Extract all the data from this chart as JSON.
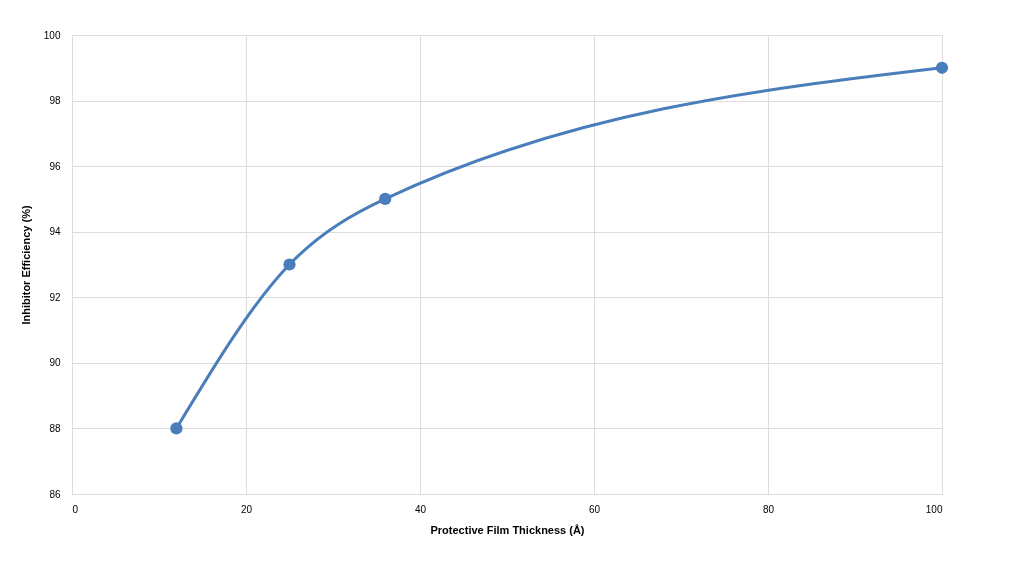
{
  "chart_data": {
    "type": "line",
    "xlabel": "Protective Film Thickness (Å)",
    "ylabel": "Inhibitor Efficiency (%)",
    "series": [
      {
        "color": "#4a7ebb",
        "x": [
          12,
          25,
          36,
          100
        ],
        "values": [
          88,
          93,
          95,
          99
        ]
      }
    ],
    "xlim": [
      0,
      100
    ],
    "xticks": [
      0,
      20,
      40,
      60,
      80,
      100
    ],
    "ylim": [
      86,
      100
    ],
    "yticks": [
      86,
      88,
      90,
      92,
      94,
      96,
      98,
      100
    ],
    "grid": true,
    "marker": "circle",
    "line_style": "solid"
  }
}
